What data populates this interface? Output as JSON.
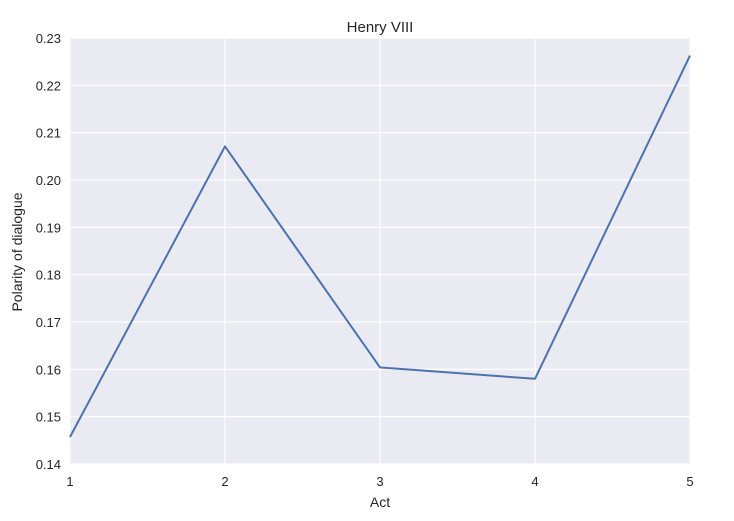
{
  "chart_data": {
    "type": "line",
    "title": "Henry VIII",
    "xlabel": "Act",
    "ylabel": "Polarity of dialogue",
    "x": [
      1,
      2,
      3,
      4,
      5
    ],
    "series": [
      {
        "values": [
          0.1457,
          0.2071,
          0.1604,
          0.158,
          0.2263
        ]
      }
    ],
    "xlim": [
      1,
      5
    ],
    "ylim": [
      0.14,
      0.23
    ],
    "xticks": [
      "1",
      "2",
      "3",
      "4",
      "5"
    ],
    "yticks": [
      "0.14",
      "0.15",
      "0.16",
      "0.17",
      "0.18",
      "0.19",
      "0.20",
      "0.21",
      "0.22",
      "0.23"
    ],
    "grid": true,
    "colors": {
      "line": "#4c72b0",
      "plot_background": "#eaeaf2",
      "grid": "#ffffff"
    }
  }
}
